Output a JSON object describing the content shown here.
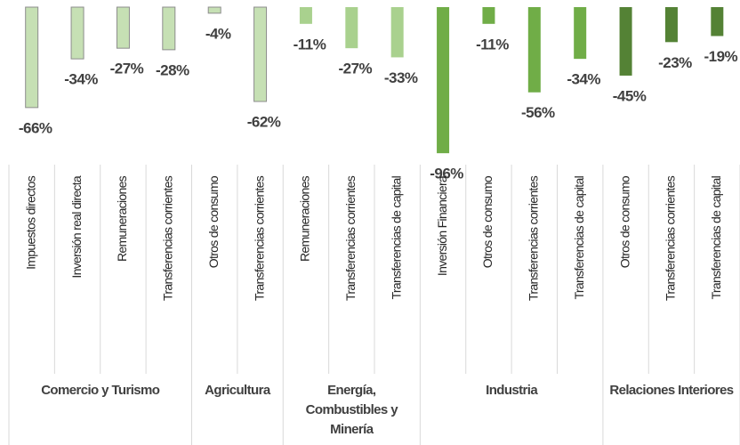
{
  "chart_data": {
    "type": "bar",
    "ylim": [
      -100,
      0
    ],
    "groups": [
      {
        "label": "Comercio y Turismo",
        "color": "#c6e0b4",
        "categories": [
          "Impuestos directos",
          "Inversión real directa",
          "Remuneraciones",
          "Transferencias corrientes"
        ],
        "values": [
          -66,
          -34,
          -27,
          -28
        ],
        "value_labels": [
          "-66%",
          "-34%",
          "-27%",
          "-28%"
        ]
      },
      {
        "label": "Agricultura",
        "color": "#c6e0b4",
        "categories": [
          "Otros de consumo",
          "Transferencias corrientes"
        ],
        "values": [
          -4,
          -62
        ],
        "value_labels": [
          "-4%",
          "-62%"
        ]
      },
      {
        "label": "Energía, Combustibles y Minería",
        "color": "#a9d18e",
        "categories": [
          "Remuneraciones",
          "Transferencias corrientes",
          "Transferencias de capital"
        ],
        "values": [
          -11,
          -27,
          -33
        ],
        "value_labels": [
          "-11%",
          "-27%",
          "-33%"
        ]
      },
      {
        "label": "Industria",
        "color": "#70ad47",
        "categories": [
          "Inversión Financiera",
          "Otros de consumo",
          "Transferencias corrientes",
          "Transferencias de capital"
        ],
        "values": [
          -96,
          -11,
          -56,
          -34
        ],
        "value_labels": [
          "-96%",
          "-11%",
          "-56%",
          "-34%"
        ]
      },
      {
        "label": "Relaciones Interiores",
        "color": "#548235",
        "categories": [
          "Otros de consumo",
          "Transferencias corrientes",
          "Transferencias de capital"
        ],
        "values": [
          -45,
          -23,
          -19
        ],
        "value_labels": [
          "-45%",
          "-23%",
          "-19%"
        ]
      }
    ]
  }
}
